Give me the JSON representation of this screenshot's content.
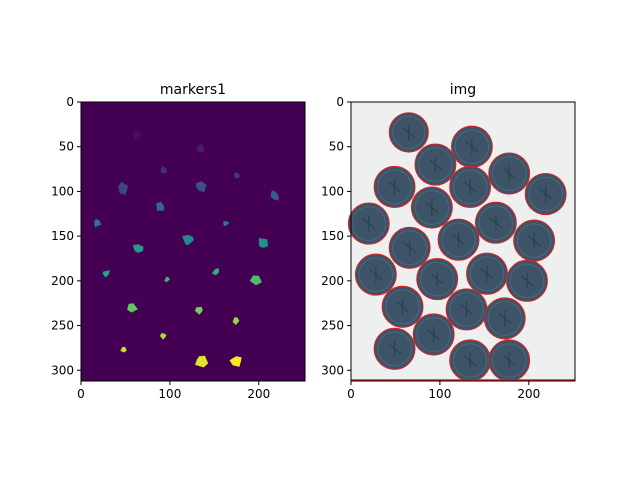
{
  "chart_data": [
    {
      "type": "heatmap",
      "title": "markers1",
      "xlabel": "",
      "ylabel": "",
      "xlim": [
        0,
        252
      ],
      "ylim": [
        312,
        0
      ],
      "xticks": [
        0,
        100,
        200
      ],
      "yticks": [
        0,
        50,
        100,
        150,
        200,
        250,
        300
      ],
      "colormap": "viridis",
      "background_color": "#440154",
      "markers": [
        {
          "x": 63,
          "y": 37,
          "v": 1
        },
        {
          "x": 135,
          "y": 52,
          "v": 2
        },
        {
          "x": 93,
          "y": 76,
          "v": 3
        },
        {
          "x": 175,
          "y": 82,
          "v": 4
        },
        {
          "x": 47,
          "y": 97,
          "v": 5
        },
        {
          "x": 135,
          "y": 95,
          "v": 6
        },
        {
          "x": 218,
          "y": 105,
          "v": 7
        },
        {
          "x": 89,
          "y": 117,
          "v": 8
        },
        {
          "x": 18,
          "y": 136,
          "v": 9
        },
        {
          "x": 163,
          "y": 136,
          "v": 10
        },
        {
          "x": 121,
          "y": 154,
          "v": 11
        },
        {
          "x": 205,
          "y": 158,
          "v": 12
        },
        {
          "x": 64,
          "y": 164,
          "v": 13
        },
        {
          "x": 28,
          "y": 192,
          "v": 14
        },
        {
          "x": 152,
          "y": 190,
          "v": 15
        },
        {
          "x": 97,
          "y": 198,
          "v": 16
        },
        {
          "x": 197,
          "y": 198,
          "v": 17
        },
        {
          "x": 57,
          "y": 229,
          "v": 18
        },
        {
          "x": 133,
          "y": 232,
          "v": 19
        },
        {
          "x": 174,
          "y": 244,
          "v": 20
        },
        {
          "x": 92,
          "y": 261,
          "v": 21
        },
        {
          "x": 48,
          "y": 276,
          "v": 22
        },
        {
          "x": 135,
          "y": 289,
          "v": 23
        },
        {
          "x": 175,
          "y": 289,
          "v": 24
        }
      ]
    },
    {
      "type": "image",
      "title": "img",
      "xlabel": "",
      "ylabel": "",
      "xlim": [
        0,
        252
      ],
      "ylim": [
        312,
        0
      ],
      "xticks": [
        0,
        100,
        200
      ],
      "yticks": [
        0,
        50,
        100,
        150,
        200,
        250,
        300
      ],
      "background_color": "#eef0f0",
      "coin_color": "#3d5468",
      "contour_color": "#e02020",
      "coins": [
        {
          "x": 65,
          "y": 34,
          "r": 22
        },
        {
          "x": 136,
          "y": 50,
          "r": 23
        },
        {
          "x": 95,
          "y": 70,
          "r": 23
        },
        {
          "x": 178,
          "y": 80,
          "r": 23
        },
        {
          "x": 49,
          "y": 95,
          "r": 23
        },
        {
          "x": 134,
          "y": 95,
          "r": 23
        },
        {
          "x": 219,
          "y": 103,
          "r": 23
        },
        {
          "x": 91,
          "y": 118,
          "r": 23
        },
        {
          "x": 20,
          "y": 136,
          "r": 23
        },
        {
          "x": 163,
          "y": 135,
          "r": 23
        },
        {
          "x": 121,
          "y": 154,
          "r": 23
        },
        {
          "x": 206,
          "y": 155,
          "r": 23
        },
        {
          "x": 66,
          "y": 163,
          "r": 23
        },
        {
          "x": 28,
          "y": 193,
          "r": 23
        },
        {
          "x": 153,
          "y": 192,
          "r": 23
        },
        {
          "x": 97,
          "y": 198,
          "r": 23
        },
        {
          "x": 198,
          "y": 200,
          "r": 23
        },
        {
          "x": 58,
          "y": 229,
          "r": 23
        },
        {
          "x": 130,
          "y": 232,
          "r": 23
        },
        {
          "x": 173,
          "y": 242,
          "r": 23
        },
        {
          "x": 93,
          "y": 260,
          "r": 23
        },
        {
          "x": 49,
          "y": 276,
          "r": 23
        },
        {
          "x": 134,
          "y": 289,
          "r": 23
        },
        {
          "x": 178,
          "y": 289,
          "r": 23
        }
      ]
    }
  ]
}
